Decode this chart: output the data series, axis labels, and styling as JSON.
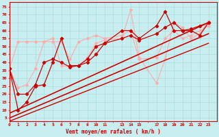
{
  "bg_color": "#c8eef0",
  "grid_color": "#aadddd",
  "xlabel": "Vent moyen/en rafales ( km/h )",
  "ylabel_ticks": [
    5,
    10,
    15,
    20,
    25,
    30,
    35,
    40,
    45,
    50,
    55,
    60,
    65,
    70,
    75
  ],
  "xlim": [
    0,
    24
  ],
  "ylim": [
    3,
    78
  ],
  "xtick_labels": [
    "0",
    "1",
    "2",
    "3",
    "4",
    "5",
    "6",
    "7",
    "8",
    "9",
    "10",
    "11",
    "",
    "13",
    "14",
    "15",
    "",
    "17",
    "18",
    "19",
    "20",
    "21",
    "22",
    "23"
  ],
  "series": [
    {
      "x": [
        0,
        1,
        2,
        3,
        4,
        5,
        6,
        7,
        8,
        9,
        10,
        11,
        13,
        14,
        15,
        17,
        18,
        19,
        20,
        21,
        22,
        23
      ],
      "y": [
        36,
        53,
        53,
        53,
        53,
        53,
        53,
        42,
        53,
        55,
        57,
        55,
        57,
        60,
        42,
        43,
        55,
        60,
        55,
        57,
        60,
        63
      ],
      "color": "#ffaaaa",
      "lw": 0.8,
      "marker": "D",
      "ms": 1.8,
      "zorder": 2
    },
    {
      "x": [
        0,
        1,
        2,
        3,
        4,
        5,
        6,
        7,
        8,
        9,
        10,
        11,
        13,
        14,
        15,
        17,
        18,
        19,
        20,
        21,
        22,
        23
      ],
      "y": [
        36,
        24,
        26,
        36,
        53,
        55,
        38,
        37,
        38,
        43,
        52,
        54,
        55,
        73,
        43,
        27,
        42,
        65,
        62,
        55,
        58,
        66
      ],
      "color": "#ffaaaa",
      "lw": 0.8,
      "marker": "D",
      "ms": 1.8,
      "zorder": 2
    },
    {
      "x": [
        0,
        23
      ],
      "y": [
        8,
        65
      ],
      "color": "#cc0000",
      "lw": 1.2,
      "marker": null,
      "ms": 0,
      "zorder": 3,
      "linestyle": "-"
    },
    {
      "x": [
        0,
        23
      ],
      "y": [
        5,
        58
      ],
      "color": "#cc0000",
      "lw": 1.2,
      "marker": null,
      "ms": 0,
      "zorder": 3,
      "linestyle": "-"
    },
    {
      "x": [
        0,
        23
      ],
      "y": [
        3,
        52
      ],
      "color": "#cc0000",
      "lw": 1.0,
      "marker": null,
      "ms": 0,
      "zorder": 3,
      "linestyle": "-"
    },
    {
      "x": [
        0,
        1,
        2,
        3,
        4,
        5,
        6,
        7,
        8,
        9,
        10,
        11,
        13,
        14,
        15,
        17,
        18,
        19,
        20,
        21,
        22,
        23
      ],
      "y": [
        36,
        10,
        15,
        25,
        26,
        40,
        55,
        38,
        38,
        40,
        45,
        52,
        60,
        60,
        55,
        63,
        72,
        60,
        60,
        60,
        57,
        65
      ],
      "color": "#cc0000",
      "lw": 0.9,
      "marker": "D",
      "ms": 2.2,
      "zorder": 5
    },
    {
      "x": [
        0,
        1,
        2,
        3,
        4,
        5,
        6,
        7,
        8,
        9,
        10,
        11,
        13,
        14,
        15,
        17,
        18,
        19,
        20,
        21,
        22,
        23
      ],
      "y": [
        36,
        20,
        20,
        26,
        40,
        42,
        40,
        37,
        38,
        42,
        50,
        52,
        55,
        57,
        54,
        58,
        62,
        65,
        60,
        61,
        63,
        65
      ],
      "color": "#cc0000",
      "lw": 0.9,
      "marker": "D",
      "ms": 2.2,
      "zorder": 4
    }
  ]
}
